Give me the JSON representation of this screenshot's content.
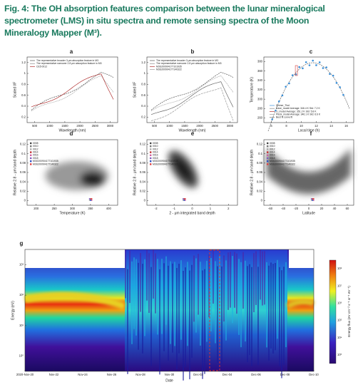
{
  "title": "Fig. 4: The OH absorption features comparison between the lunar mineralogical spectrometer (LMS) in situ spectra and remote sensing spectra of the Moon Mineralogy Mapper (M³).",
  "panels": [
    {
      "label": "a",
      "ylabel": "Scaled I/F",
      "xlabel": "Wavelength (nm)",
      "xticks": [
        "500",
        "1000",
        "1500",
        "2000",
        "2500",
        "3000"
      ],
      "yticks": [
        "0.2",
        "0.4",
        "0.6",
        "0.8",
        "1",
        "1.2"
      ],
      "legend": [
        "The representative broader 3 μm absorption feature in M3",
        "The representative narrower 2.8 μm absorption feature in M3",
        "CE5 0012"
      ]
    },
    {
      "label": "b",
      "ylabel": "Scaled I/F",
      "xlabel": "Wavelength (nm)",
      "xticks": [
        "500",
        "1000",
        "1500",
        "2000",
        "2500",
        "3000"
      ],
      "yticks": [
        "0.2",
        "0.4",
        "0.6",
        "0.8",
        "1",
        "1.2"
      ],
      "legend": [
        "The representative broader 3 μm absorption feature in M3",
        "The representative narrower 2.8 μm absorption feature in M3",
        "M3G20090417T101935",
        "M3G20090417T140322"
      ]
    },
    {
      "label": "c",
      "ylabel": "Temperature (K)",
      "xlabel": "Local time (h)",
      "xticks": [
        "6",
        "8",
        "10",
        "12",
        "14",
        "16"
      ],
      "yticks": [
        "260",
        "280",
        "300",
        "320",
        "340",
        "360",
        "380"
      ],
      "legend": [
        "Diviner_Tbol",
        "Dave_model      Average: 346.4 K    Std: 7.2 K",
        "Li_model          Average: 351.2 K    Std: 5.8 K",
        "Pieck_model     Average: 346.1 K    Std: 6.6 K",
        "Best fit curve fit"
      ]
    },
    {
      "label": "d",
      "ylabel": "Relative 2.8 - μm band depth",
      "xlabel": "Temperature (K)",
      "xticks": [
        "200",
        "250",
        "300",
        "350",
        "400"
      ],
      "yticks": [
        "0",
        "0.02",
        "0.04",
        "0.06",
        "0.08",
        "0.1",
        "0.12"
      ],
      "legend": [
        "0008",
        "0010",
        "0012",
        "0014",
        "0016",
        "0018",
        "M3G20090417T101935",
        "M3G20090417T140322"
      ]
    },
    {
      "label": "e",
      "ylabel": "Relative 2.8 - μm band depth",
      "xlabel": "2 - μm integrated band depth",
      "xticks": [
        "-2",
        "-1",
        "0",
        "1",
        "2"
      ],
      "yticks": [
        "0",
        "0.02",
        "0.04",
        "0.06",
        "0.08",
        "0.1",
        "0.12"
      ],
      "legend": [
        "0008",
        "0010",
        "0012",
        "0014",
        "0016",
        "0018",
        "M3G20090417T101935",
        "M3G20090417T140322"
      ]
    },
    {
      "label": "f",
      "ylabel": "Relative 2.8 - μm band depth",
      "xlabel": "Latitude",
      "xticks": [
        "-60",
        "-40",
        "-20",
        "0",
        "20",
        "40",
        "60"
      ],
      "yticks": [
        "0",
        "0.02",
        "0.04",
        "0.06",
        "0.08",
        "0.1",
        "0.12"
      ],
      "legend": [
        "0008",
        "0010",
        "0012",
        "0014",
        "0016",
        "0018",
        "M3G20090417T101935",
        "M3G20090417T140322"
      ]
    },
    {
      "label": "g",
      "ylabel": "Energy (eV)",
      "xlabel": "Date",
      "xticks": [
        "2020-Nov-20",
        "Nov-22",
        "Nov-24",
        "Nov-26",
        "Nov-28",
        "Nov-30",
        "Dec-02",
        "Dec-04",
        "Dec-06",
        "Dec-08",
        "Dec-10"
      ],
      "yticks": [
        "10⁰",
        "10¹",
        "10²",
        "10³"
      ],
      "legend": [],
      "colorbar_label": "Energy flux (eV cm⁻² s⁻¹ sr⁻¹ eV⁻¹)",
      "colorbar_ticks": [
        "10³",
        "10⁴",
        "10⁵",
        "10⁶",
        "10⁷",
        "10⁸"
      ]
    }
  ]
}
